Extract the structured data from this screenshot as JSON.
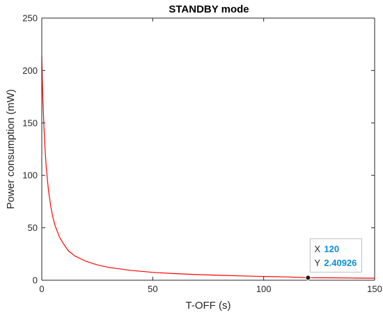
{
  "chart_data": {
    "type": "line",
    "title": "STANDBY mode",
    "xlabel": "T-OFF (s)",
    "ylabel": "Power consumption (mW)",
    "xlim": [
      0,
      150
    ],
    "ylim": [
      0,
      250
    ],
    "xticks": [
      "0",
      "50",
      "100",
      "150"
    ],
    "yticks": [
      "0",
      "50",
      "100",
      "150",
      "200",
      "250"
    ],
    "grid": false,
    "series": [
      {
        "color": "#ff0000",
        "x": [
          0,
          0.25,
          0.5,
          1,
          1.5,
          2,
          3,
          4,
          5,
          6,
          8,
          10,
          12,
          15,
          20,
          25,
          30,
          40,
          50,
          60,
          70,
          80,
          90,
          100,
          110,
          120,
          130,
          140,
          150
        ],
        "y": [
          214,
          190,
          172,
          145,
          124,
          108,
          86,
          71,
          60,
          52,
          41,
          34,
          28,
          23,
          18,
          14.6,
          12.3,
          9.4,
          7.5,
          6.3,
          5.4,
          4.7,
          4.1,
          3.6,
          3.2,
          2.41,
          2.3,
          2.1,
          1.9
        ]
      }
    ],
    "datatip": {
      "x_label": "X",
      "x_value": "120",
      "y_label": "Y",
      "y_value": "2.40926",
      "x": 120,
      "y": 2.40926
    }
  }
}
